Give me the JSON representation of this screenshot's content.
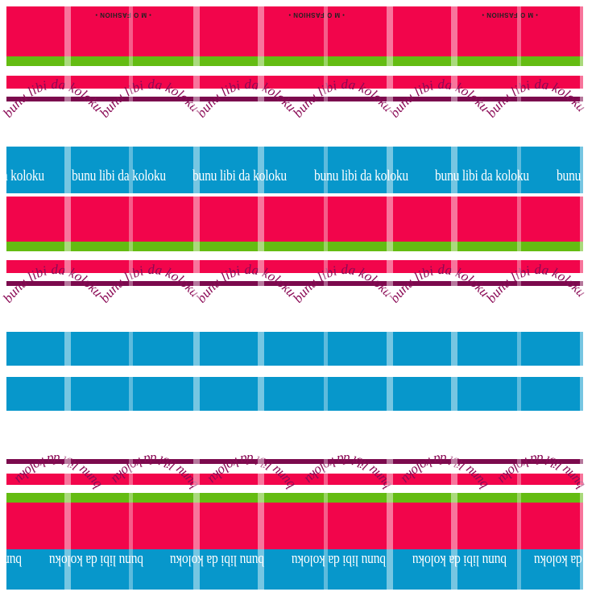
{
  "brand": {
    "label": "M O FASHION",
    "marker": "•"
  },
  "slogan": "bunu libi da koloku",
  "colors": {
    "red": "#f2054b",
    "green": "#64bc12",
    "blue": "#0797cb",
    "plum": "#7b0a4d",
    "white": "#ffffff",
    "arc_plum": "#8a0a55",
    "arc_green": "#5ea31a"
  }
}
